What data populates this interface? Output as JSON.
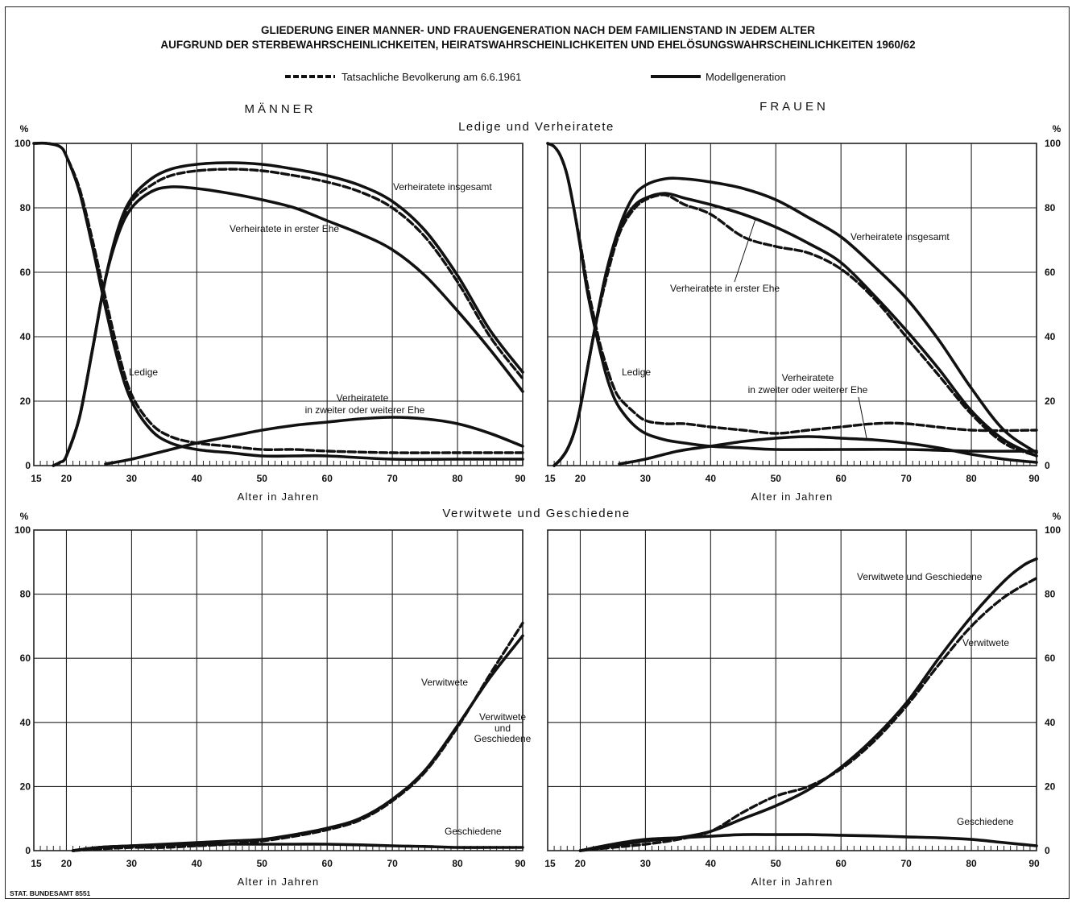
{
  "header": {
    "title_line1": "GLIEDERUNG EINER MANNER- UND FRAUENGENERATION NACH DEM FAMILIENSTAND IN JEDEM ALTER",
    "title_line2": "AUFGRUND DER STERBEWAHRSCHEINLICHKEITEN, HEIRATSWAHRSCHEINLICHKEITEN UND EHELÖSUNGSWAHRSCHEINLICHKEITEN 1960/62"
  },
  "legend": {
    "dashed_label": "Tatsachliche Bevolkerung am 6.6.1961",
    "solid_label": "Modellgeneration",
    "position": "top-center"
  },
  "columns": {
    "men": "MÄNNER",
    "women": "FRAUEN"
  },
  "section_titles": {
    "top": "Ledige und Verheiratete",
    "bottom": "Verwitwete und Geschiedene"
  },
  "axes": {
    "percent_symbol": "%",
    "xlabel": "Alter in Jahren",
    "xticks": [
      "15",
      "20",
      "30",
      "40",
      "50",
      "60",
      "70",
      "80",
      "90"
    ],
    "yticks": [
      "0",
      "20",
      "40",
      "60",
      "80",
      "100"
    ]
  },
  "footer": {
    "source": "STAT. BUNDESAMT 8551"
  },
  "colors": {
    "line": "#111111",
    "grid": "#222222",
    "background": "#ffffff"
  },
  "chart_data": [
    {
      "id": "men-top",
      "type": "line",
      "title": "",
      "xlabel": "Alter in Jahren",
      "ylabel": "%",
      "xlim": [
        15,
        90
      ],
      "ylim": [
        0,
        100
      ],
      "grid": true,
      "series": [
        {
          "name": "Ledige",
          "style": "solid",
          "x": [
            15,
            17,
            19,
            20,
            22,
            24,
            26,
            28,
            30,
            33,
            36,
            40,
            45,
            50,
            55,
            60,
            70,
            80,
            90
          ],
          "y": [
            100,
            100,
            99,
            96,
            85,
            68,
            49,
            32,
            20,
            11,
            7,
            5,
            4,
            3,
            3,
            3,
            2,
            2,
            2
          ]
        },
        {
          "name": "",
          "style": "dashed",
          "x": [
            15,
            17,
            19,
            20,
            22,
            24,
            26,
            28,
            30,
            33,
            36,
            40,
            45,
            50,
            55,
            60,
            70,
            80,
            90
          ],
          "y": [
            100,
            100,
            99,
            96,
            86,
            70,
            52,
            35,
            22,
            13,
            9,
            7,
            6,
            5,
            5,
            4.5,
            4,
            4,
            4
          ]
        },
        {
          "name": "Verheiratete insgesamt",
          "style": "solid",
          "x": [
            18,
            19,
            20,
            22,
            24,
            26,
            28,
            30,
            33,
            36,
            40,
            45,
            50,
            55,
            60,
            65,
            70,
            75,
            80,
            85,
            90
          ],
          "y": [
            0,
            1,
            3,
            15,
            36,
            58,
            74,
            83,
            89,
            92,
            93.5,
            94,
            93.5,
            92,
            90,
            87,
            82,
            73,
            59,
            42,
            29
          ]
        },
        {
          "name": "",
          "style": "dashed",
          "x": [
            18,
            19,
            20,
            22,
            24,
            26,
            28,
            30,
            33,
            36,
            40,
            45,
            50,
            55,
            60,
            65,
            70,
            75,
            80,
            85,
            90
          ],
          "y": [
            0,
            1,
            3,
            15,
            36,
            58,
            73,
            82,
            87,
            90,
            91.5,
            92,
            91.5,
            90,
            88,
            85,
            80,
            71,
            57,
            40,
            27
          ]
        },
        {
          "name": "Verheiratete in erster Ehe",
          "style": "solid",
          "x": [
            20,
            22,
            24,
            26,
            28,
            30,
            33,
            36,
            40,
            45,
            50,
            55,
            60,
            65,
            70,
            75,
            80,
            85,
            90
          ],
          "y": [
            3,
            15,
            36,
            58,
            72,
            80,
            85,
            86.5,
            86,
            84.5,
            82.5,
            80,
            76,
            72,
            67,
            59,
            48,
            36,
            23
          ]
        },
        {
          "name": "Verheiratete in zweiter oder weiterer Ehe",
          "style": "solid",
          "x": [
            26,
            30,
            35,
            40,
            45,
            50,
            55,
            60,
            65,
            70,
            75,
            80,
            85,
            90
          ],
          "y": [
            0.5,
            2,
            4.5,
            7,
            9,
            11,
            12.5,
            13.5,
            14.5,
            15,
            14.5,
            13,
            10,
            6
          ]
        }
      ]
    },
    {
      "id": "women-top",
      "type": "line",
      "title": "",
      "xlabel": "Alter in Jahren",
      "ylabel": "%",
      "xlim": [
        15,
        90
      ],
      "ylim": [
        0,
        100
      ],
      "grid": true,
      "series": [
        {
          "name": "Ledige",
          "style": "solid",
          "x": [
            15,
            16,
            17,
            18,
            19,
            20,
            21,
            22,
            23,
            24,
            25,
            26,
            28,
            30,
            33,
            36,
            40,
            45,
            50,
            60,
            70,
            80,
            90
          ],
          "y": [
            100,
            99,
            96,
            90,
            80,
            68,
            55,
            45,
            36,
            28,
            22,
            18,
            13,
            10,
            8,
            7,
            6,
            5.5,
            5,
            5,
            5,
            4.5,
            4.5
          ]
        },
        {
          "name": "",
          "style": "dashed",
          "x": [
            15,
            16,
            17,
            18,
            19,
            20,
            21,
            22,
            23,
            24,
            25,
            26,
            28,
            30,
            33,
            36,
            40,
            45,
            50,
            55,
            60,
            65,
            70,
            80,
            90
          ],
          "y": [
            100,
            99,
            96,
            90,
            80,
            69,
            57,
            47,
            38,
            31,
            25,
            21,
            17,
            14,
            13,
            13,
            12,
            11,
            10,
            11,
            12,
            13,
            13,
            11,
            11
          ]
        },
        {
          "name": "Verheiratete insgesamt",
          "style": "solid",
          "x": [
            16,
            17,
            18,
            19,
            20,
            22,
            24,
            26,
            28,
            30,
            33,
            36,
            40,
            45,
            50,
            55,
            60,
            65,
            70,
            75,
            80,
            85,
            90
          ],
          "y": [
            0,
            2,
            5,
            10,
            18,
            40,
            60,
            74,
            83,
            87,
            89,
            89,
            88,
            86,
            82.5,
            77,
            71,
            62,
            52,
            39,
            24,
            11,
            4
          ]
        },
        {
          "name": "Verheiratete in erster Ehe",
          "style": "solid",
          "x": [
            16,
            17,
            18,
            19,
            20,
            22,
            24,
            26,
            28,
            30,
            33,
            36,
            40,
            45,
            50,
            55,
            60,
            65,
            70,
            75,
            80,
            85,
            90
          ],
          "y": [
            0,
            2,
            5,
            10,
            18,
            40,
            60,
            73,
            80,
            83,
            84.5,
            83,
            81,
            78,
            74,
            69,
            63,
            53,
            42,
            30,
            17,
            8,
            3
          ]
        },
        {
          "name": "",
          "style": "dashed",
          "x": [
            16,
            17,
            18,
            19,
            20,
            22,
            24,
            26,
            28,
            30,
            33,
            36,
            40,
            45,
            50,
            55,
            60,
            65,
            70,
            75,
            80,
            85,
            90
          ],
          "y": [
            0,
            2,
            5,
            10,
            18,
            40,
            58,
            72,
            79,
            82.5,
            84,
            81,
            78,
            71,
            68,
            66,
            61,
            52,
            40,
            28,
            16,
            7,
            3
          ]
        },
        {
          "name": "Verheiratete in zweiter oder weiterer Ehe",
          "style": "solid",
          "x": [
            26,
            30,
            35,
            40,
            45,
            50,
            55,
            60,
            65,
            70,
            75,
            80,
            85,
            90
          ],
          "y": [
            0.5,
            2,
            4.5,
            6,
            7.5,
            8.5,
            9,
            8.5,
            8,
            7,
            5.5,
            3.5,
            2,
            1
          ]
        }
      ]
    },
    {
      "id": "men-bottom",
      "type": "line",
      "title": "",
      "xlabel": "Alter in Jahren",
      "ylabel": "%",
      "xlim": [
        15,
        90
      ],
      "ylim": [
        0,
        100
      ],
      "grid": true,
      "series": [
        {
          "name": "Verwitwete und Geschiedene",
          "style": "solid",
          "x": [
            21,
            25,
            30,
            35,
            40,
            45,
            50,
            55,
            60,
            65,
            70,
            75,
            80,
            85,
            90
          ],
          "y": [
            0,
            1,
            1.5,
            2,
            2.5,
            3,
            3.5,
            5,
            7,
            10,
            16,
            25,
            39,
            54,
            67
          ]
        },
        {
          "name": "Verwitwete",
          "style": "dashed",
          "x": [
            21,
            25,
            30,
            35,
            40,
            45,
            50,
            55,
            60,
            65,
            70,
            75,
            80,
            85,
            90
          ],
          "y": [
            0,
            0.5,
            1,
            1,
            1.5,
            2,
            3,
            4.5,
            6.5,
            9.5,
            15.5,
            24.5,
            38.5,
            55,
            71
          ]
        },
        {
          "name": "Geschiedene",
          "style": "solid",
          "x": [
            21,
            25,
            30,
            35,
            40,
            45,
            50,
            55,
            60,
            65,
            70,
            75,
            80,
            85,
            90
          ],
          "y": [
            0,
            1,
            1.5,
            1.8,
            2,
            2,
            2,
            2,
            2,
            1.8,
            1.5,
            1.3,
            1,
            1,
            1
          ]
        }
      ]
    },
    {
      "id": "women-bottom",
      "type": "line",
      "title": "",
      "xlabel": "Alter in Jahren",
      "ylabel": "%",
      "xlim": [
        15,
        90
      ],
      "ylim": [
        0,
        100
      ],
      "grid": true,
      "series": [
        {
          "name": "Verwitwete und Geschiedene",
          "style": "solid",
          "x": [
            20,
            25,
            30,
            35,
            40,
            45,
            50,
            55,
            60,
            65,
            70,
            75,
            80,
            85,
            88,
            90
          ],
          "y": [
            0,
            1.5,
            3,
            4,
            6,
            10,
            14,
            19,
            26,
            35,
            46,
            60,
            73,
            84,
            89,
            91
          ]
        },
        {
          "name": "Verwitwete",
          "style": "dashed",
          "x": [
            20,
            25,
            30,
            35,
            40,
            45,
            50,
            55,
            60,
            65,
            70,
            75,
            80,
            85,
            90
          ],
          "y": [
            0,
            1,
            2,
            3.5,
            6,
            12,
            17,
            20,
            25.5,
            34,
            45,
            58,
            70,
            79,
            85
          ]
        },
        {
          "name": "Geschiedene",
          "style": "solid",
          "x": [
            20,
            25,
            30,
            35,
            40,
            45,
            50,
            55,
            60,
            65,
            70,
            75,
            80,
            85,
            90
          ],
          "y": [
            0,
            2,
            3.5,
            4,
            4.5,
            5,
            5,
            5,
            4.8,
            4.6,
            4.3,
            4,
            3.5,
            2.5,
            1.5
          ]
        }
      ]
    }
  ],
  "annotations": {
    "men_top": {
      "ledige": "Ledige",
      "vh_insgesamt": "Verheiratete insgesamt",
      "vh_erste": "Verheiratete in erster Ehe",
      "vh_zweite_1": "Verheiratete",
      "vh_zweite_2": "in zweiter oder weiterer Ehe"
    },
    "women_top": {
      "ledige": "Ledige",
      "vh_insgesamt": "Verheiratete insgesamt",
      "vh_erste": "Verheiratete in erster Ehe",
      "vh_zweite_1": "Verheiratete",
      "vh_zweite_2": "in zweiter oder weiterer Ehe"
    },
    "men_bottom": {
      "verwitwete": "Verwitwete",
      "vg_1": "Verwitwete",
      "vg_2": "und",
      "vg_3": "Geschiedene",
      "geschiedene": "Geschiedene"
    },
    "women_bottom": {
      "vg": "Verwitwete und Geschiedene",
      "verwitwete": "Verwitwete",
      "geschiedene": "Geschiedene"
    }
  }
}
